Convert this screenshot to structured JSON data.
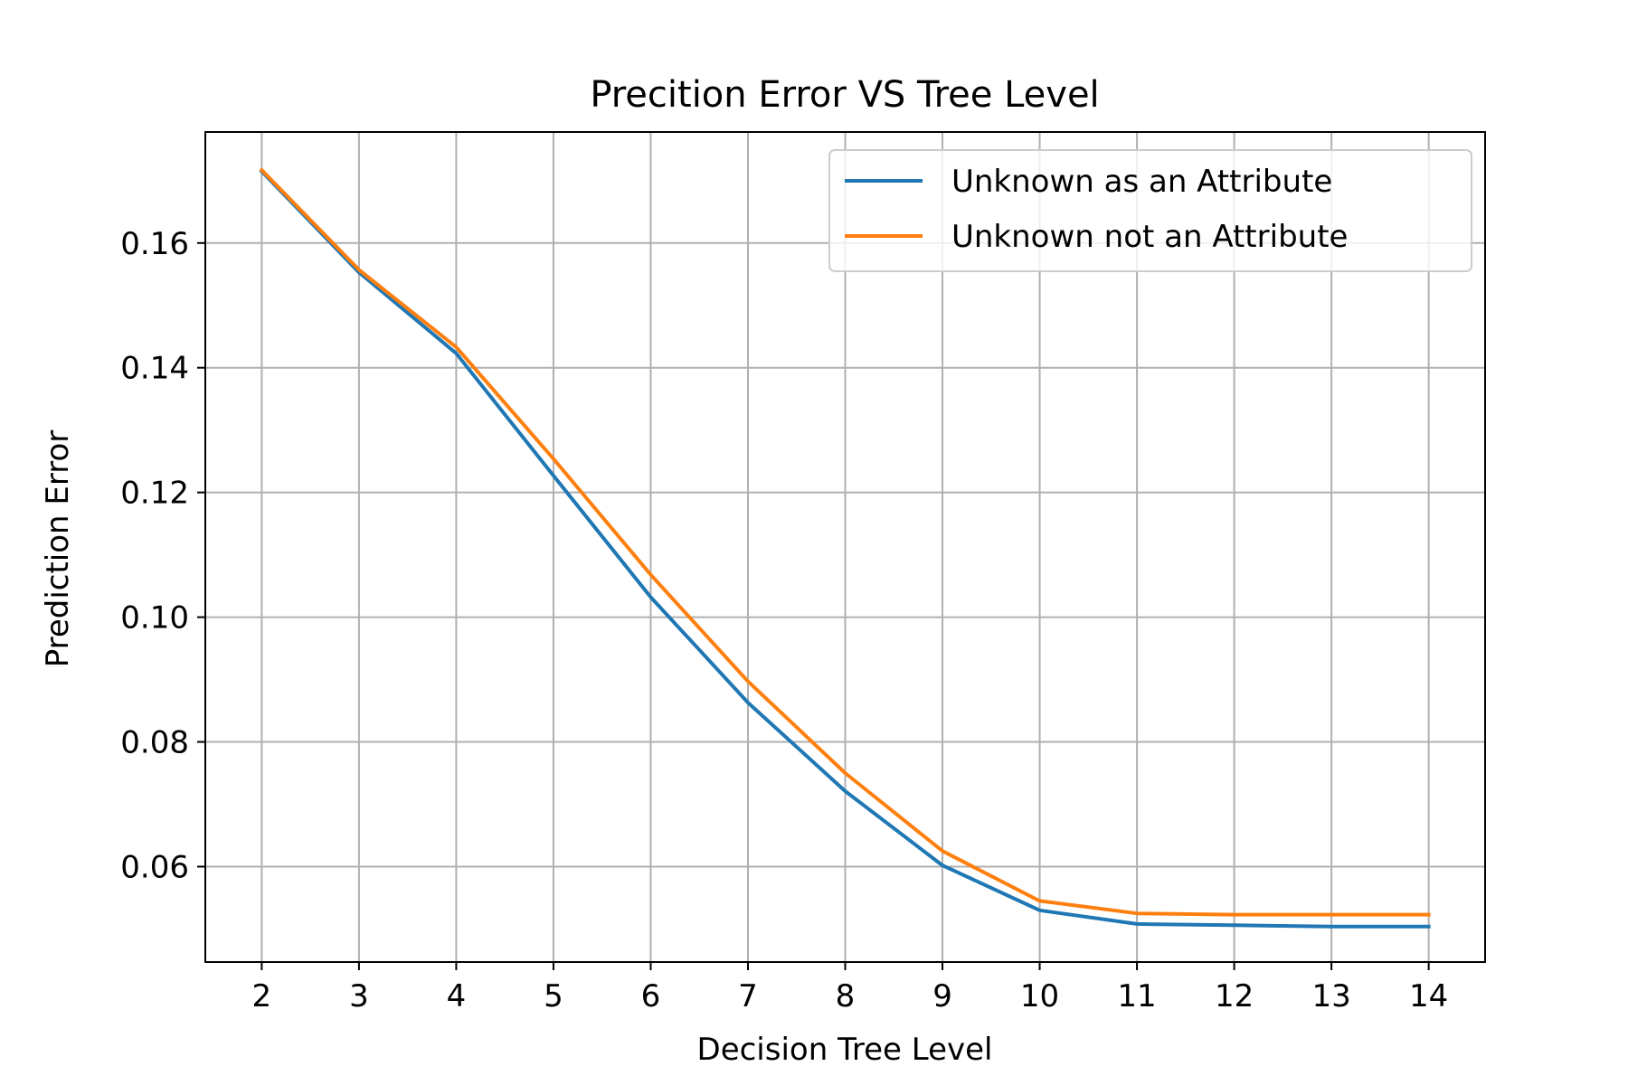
{
  "chart_data": {
    "type": "line",
    "title": "Precition Error VS Tree Level",
    "xlabel": "Decision Tree Level",
    "ylabel": "Prediction Error",
    "x": [
      2,
      3,
      4,
      5,
      6,
      7,
      8,
      9,
      10,
      11,
      12,
      13,
      14
    ],
    "xlim": [
      1.42,
      14.58
    ],
    "ylim": [
      0.0447,
      0.1778
    ],
    "xticks": [
      2,
      3,
      4,
      5,
      6,
      7,
      8,
      9,
      10,
      11,
      12,
      13,
      14
    ],
    "yticks": [
      0.06,
      0.08,
      0.1,
      0.12,
      0.14,
      0.16
    ],
    "ytick_labels": [
      "0.06",
      "0.08",
      "0.10",
      "0.12",
      "0.14",
      "0.16"
    ],
    "grid": true,
    "legend_position": "upper-right",
    "series": [
      {
        "name": "Unknown as an Attribute",
        "color": "#1f77b4",
        "values": [
          0.1715,
          0.1553,
          0.1423,
          0.1227,
          0.1032,
          0.0863,
          0.0721,
          0.0602,
          0.053,
          0.0508,
          0.0506,
          0.0504,
          0.0504
        ]
      },
      {
        "name": "Unknown not an Attribute",
        "color": "#ff7f0e",
        "values": [
          0.1717,
          0.1557,
          0.1433,
          0.1254,
          0.1068,
          0.0897,
          0.075,
          0.0625,
          0.0545,
          0.0525,
          0.0523,
          0.0523,
          0.0523
        ]
      }
    ]
  }
}
